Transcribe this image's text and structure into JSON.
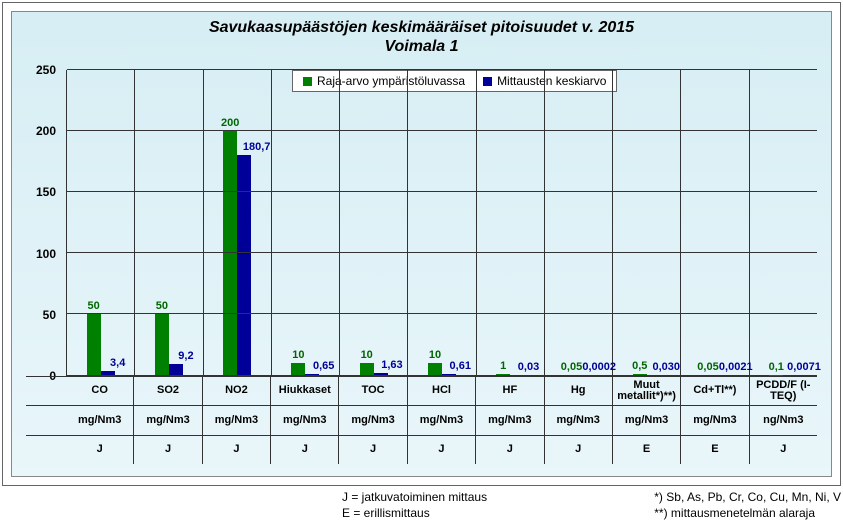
{
  "title_line1": "Savukaasupäästöjen keskimääräiset pitoisuudet v. 2015",
  "title_line2": "Voimala 1",
  "legend": {
    "series1": {
      "label": "Raja-arvo ympäristöluvassa",
      "color": "#008000"
    },
    "series2": {
      "label": "Mittausten keskiarvo",
      "color": "#000099"
    }
  },
  "yaxis": {
    "min": 0,
    "max": 250,
    "step": 50,
    "ticks": [
      0,
      50,
      100,
      150,
      200,
      250
    ]
  },
  "categories": [
    {
      "name": "CO",
      "unit": "mg/Nm3",
      "method": "J",
      "limit": 50,
      "limit_label": "50",
      "meas": 3.4,
      "meas_label": "3,4"
    },
    {
      "name": "SO2",
      "unit": "mg/Nm3",
      "method": "J",
      "limit": 50,
      "limit_label": "50",
      "meas": 9.2,
      "meas_label": "9,2"
    },
    {
      "name": "NO2",
      "unit": "mg/Nm3",
      "method": "J",
      "limit": 200,
      "limit_label": "200",
      "meas": 180.7,
      "meas_label": "180,7"
    },
    {
      "name": "Hiukkaset",
      "unit": "mg/Nm3",
      "method": "J",
      "limit": 10,
      "limit_label": "10",
      "meas": 0.65,
      "meas_label": "0,65"
    },
    {
      "name": "TOC",
      "unit": "mg/Nm3",
      "method": "J",
      "limit": 10,
      "limit_label": "10",
      "meas": 1.63,
      "meas_label": "1,63"
    },
    {
      "name": "HCl",
      "unit": "mg/Nm3",
      "method": "J",
      "limit": 10,
      "limit_label": "10",
      "meas": 0.61,
      "meas_label": "0,61"
    },
    {
      "name": "HF",
      "unit": "mg/Nm3",
      "method": "J",
      "limit": 1,
      "limit_label": "1",
      "meas": 0.03,
      "meas_label": "0,03"
    },
    {
      "name": "Hg",
      "unit": "mg/Nm3",
      "method": "J",
      "limit": 0.05,
      "limit_label": "0,05",
      "meas": 0.0002,
      "meas_label": "0,0002"
    },
    {
      "name": "Muut metallit*)**)",
      "unit": "mg/Nm3",
      "method": "E",
      "limit": 0.5,
      "limit_label": "0,5",
      "meas": 0.03,
      "meas_label": "0,030"
    },
    {
      "name": "Cd+Tl**)",
      "unit": "mg/Nm3",
      "method": "E",
      "limit": 0.05,
      "limit_label": "0,05",
      "meas": 0.0021,
      "meas_label": "0,0021"
    },
    {
      "name": "PCDD/F (I-TEQ)",
      "unit": "ng/Nm3",
      "method": "J",
      "limit": 0.1,
      "limit_label": "0,1",
      "meas": 0.0071,
      "meas_label": "0,0071"
    }
  ],
  "footnotes": {
    "J": "J = jatkuvatoiminen mittaus",
    "E": "E = erillismittaus",
    "star": "*) Sb, As, Pb, Cr, Co, Cu, Mn, Ni, V",
    "dstar": "**) mittausmenetelmän alaraja"
  },
  "colors": {
    "limit_bar": "#008000",
    "meas_bar": "#000099",
    "limit_text": "#006600",
    "meas_text": "#000099",
    "plot_bg_top": "#d6eef4",
    "plot_bg_bottom": "#e9f6fa",
    "grid": "#333333"
  },
  "title_fontsize": 16,
  "axis_fontsize": 12,
  "label_fontsize": 11
}
